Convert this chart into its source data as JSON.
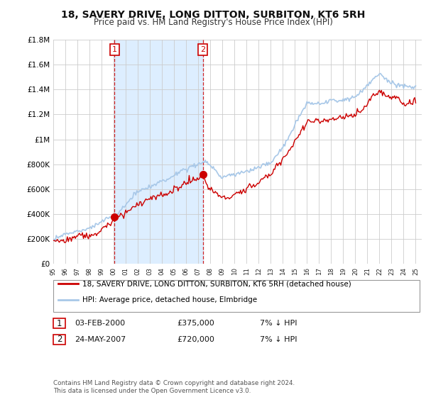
{
  "title": "18, SAVERY DRIVE, LONG DITTON, SURBITON, KT6 5RH",
  "subtitle": "Price paid vs. HM Land Registry's House Price Index (HPI)",
  "ylim": [
    0,
    1800000
  ],
  "yticks": [
    0,
    200000,
    400000,
    600000,
    800000,
    1000000,
    1200000,
    1400000,
    1600000,
    1800000
  ],
  "ytick_labels": [
    "£0",
    "£200K",
    "£400K",
    "£600K",
    "£800K",
    "£1M",
    "£1.2M",
    "£1.4M",
    "£1.6M",
    "£1.8M"
  ],
  "hpi_color": "#a8c8e8",
  "price_color": "#CC0000",
  "shade_color": "#ddeeff",
  "marker1_year": 2000.08,
  "marker1_value": 375000,
  "marker2_year": 2007.38,
  "marker2_value": 720000,
  "legend_line1": "18, SAVERY DRIVE, LONG DITTON, SURBITON, KT6 5RH (detached house)",
  "legend_line2": "HPI: Average price, detached house, Elmbridge",
  "table_row1": [
    "1",
    "03-FEB-2000",
    "£375,000",
    "7% ↓ HPI"
  ],
  "table_row2": [
    "2",
    "24-MAY-2007",
    "£720,000",
    "7% ↓ HPI"
  ],
  "footer": "Contains HM Land Registry data © Crown copyright and database right 2024.\nThis data is licensed under the Open Government Licence v3.0.",
  "background_color": "#ffffff",
  "xtick_years": [
    1995,
    1996,
    1997,
    1998,
    1999,
    2000,
    2001,
    2002,
    2003,
    2004,
    2005,
    2006,
    2007,
    2008,
    2009,
    2010,
    2011,
    2012,
    2013,
    2014,
    2015,
    2016,
    2017,
    2018,
    2019,
    2020,
    2021,
    2022,
    2023,
    2024,
    2025
  ],
  "xmin": 1995,
  "xmax": 2025.5
}
